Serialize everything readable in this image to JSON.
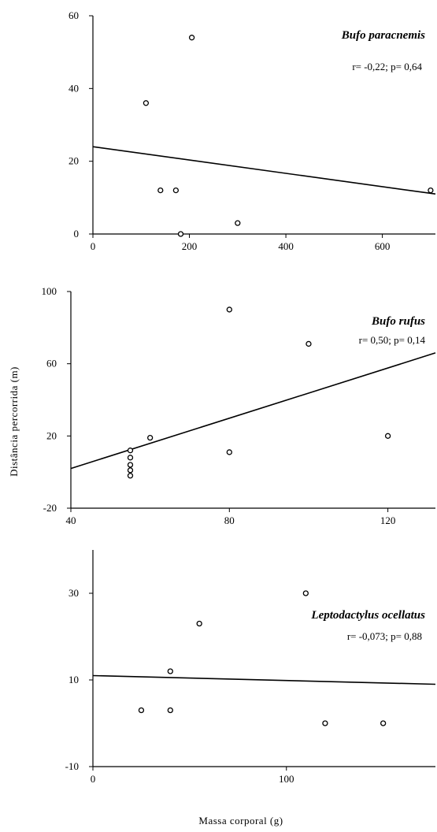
{
  "chart_data": [
    {
      "type": "scatter",
      "species": "Bufo paracnemis",
      "stat": "r= -0,22; p= 0,64",
      "xlim": [
        0,
        710
      ],
      "ylim": [
        0,
        60
      ],
      "xticks": [
        0,
        200,
        400,
        600
      ],
      "yticks": [
        0,
        20,
        40,
        60
      ],
      "x_tick_labels": [
        "0",
        "200",
        "400",
        "600"
      ],
      "y_tick_labels": [
        "0",
        "20",
        "40",
        "60"
      ],
      "points": [
        {
          "x": 110,
          "y": 36
        },
        {
          "x": 205,
          "y": 54
        },
        {
          "x": 140,
          "y": 12
        },
        {
          "x": 172,
          "y": 12
        },
        {
          "x": 182,
          "y": 0
        },
        {
          "x": 300,
          "y": 3
        },
        {
          "x": 700,
          "y": 12
        }
      ],
      "fit_line": {
        "x": [
          0,
          710
        ],
        "y": [
          24,
          11
        ]
      }
    },
    {
      "type": "scatter",
      "species": "Bufo rufus",
      "stat": "r= 0,50; p= 0,14",
      "xlim": [
        40,
        132
      ],
      "ylim": [
        -20,
        100
      ],
      "xticks": [
        40,
        80,
        120
      ],
      "yticks": [
        -20,
        20,
        60,
        100
      ],
      "x_tick_labels": [
        "40",
        "80",
        "120"
      ],
      "y_tick_labels": [
        "-20",
        "20",
        "60",
        "100"
      ],
      "points": [
        {
          "x": 55,
          "y": 12
        },
        {
          "x": 55,
          "y": 8
        },
        {
          "x": 55,
          "y": 4
        },
        {
          "x": 55,
          "y": 1
        },
        {
          "x": 55,
          "y": -2
        },
        {
          "x": 60,
          "y": 19
        },
        {
          "x": 80,
          "y": 90
        },
        {
          "x": 80,
          "y": 11
        },
        {
          "x": 100,
          "y": 71
        },
        {
          "x": 120,
          "y": 20
        }
      ],
      "fit_line": {
        "x": [
          40,
          132
        ],
        "y": [
          2,
          66
        ]
      }
    },
    {
      "type": "scatter",
      "species": "Leptodactylus ocellatus",
      "stat": "r= -0,073; p= 0,88",
      "xlim": [
        0,
        177
      ],
      "ylim": [
        -10,
        40
      ],
      "xticks": [
        0,
        100
      ],
      "yticks": [
        -10,
        10,
        30
      ],
      "x_tick_labels": [
        "0",
        "100"
      ],
      "y_tick_labels": [
        "-10",
        "10",
        "30"
      ],
      "points": [
        {
          "x": 25,
          "y": 3
        },
        {
          "x": 40,
          "y": 3
        },
        {
          "x": 40,
          "y": 12
        },
        {
          "x": 55,
          "y": 23
        },
        {
          "x": 110,
          "y": 30
        },
        {
          "x": 120,
          "y": 0
        },
        {
          "x": 150,
          "y": 0
        }
      ],
      "fit_line": {
        "x": [
          0,
          177
        ],
        "y": [
          11,
          9
        ]
      }
    }
  ],
  "ylabel": "Distância percorrida (m)",
  "xlabel": "Massa corporal (g)"
}
